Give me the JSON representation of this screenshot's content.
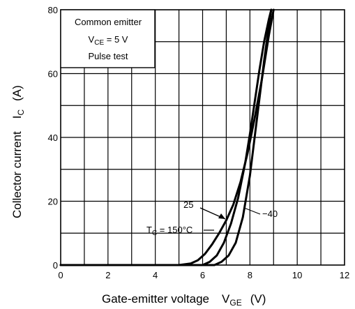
{
  "chart_data": {
    "type": "line",
    "xlabel": {
      "main": "Gate-emitter voltage",
      "symbol": "V",
      "sub": "GE",
      "unit": "(V)"
    },
    "ylabel": {
      "main": "Collector current",
      "symbol": "I",
      "sub": "C",
      "unit": "(A)"
    },
    "xlim": [
      0,
      12
    ],
    "ylim": [
      0,
      80
    ],
    "xticks": [
      0,
      2,
      4,
      6,
      8,
      10,
      12
    ],
    "yticks": [
      0,
      20,
      40,
      60,
      80
    ],
    "grid": true,
    "conditions": {
      "line1": "Common emitter",
      "line2_symbol": "V",
      "line2_sub": "CE",
      "line2_rest": " = 5 V",
      "line3": "Pulse test"
    },
    "series": [
      {
        "name": "T_C = 150°C",
        "x": [
          5.0,
          5.5,
          5.8,
          6.1,
          6.4,
          6.7,
          7.0,
          7.3,
          7.6,
          7.9,
          8.2,
          8.5,
          8.8,
          9.0
        ],
        "y": [
          0,
          0.5,
          1.5,
          3.5,
          6.5,
          10,
          14,
          19,
          26,
          35,
          46,
          58,
          72,
          80
        ]
      },
      {
        "name": "25",
        "x": [
          6.0,
          6.3,
          6.6,
          6.9,
          7.2,
          7.5,
          7.8,
          8.0,
          8.2,
          8.4,
          8.6,
          8.8,
          8.9
        ],
        "y": [
          0,
          1,
          3,
          7,
          13,
          21,
          32,
          41,
          51,
          61,
          70,
          77,
          80
        ]
      },
      {
        "name": "−40",
        "x": [
          6.5,
          6.8,
          7.1,
          7.4,
          7.7,
          8.0,
          8.2,
          8.4,
          8.6,
          8.8,
          8.9
        ],
        "y": [
          0,
          1,
          3,
          7,
          15,
          28,
          40,
          52,
          64,
          75,
          80
        ]
      }
    ],
    "labels": {
      "tc_main": "T",
      "tc_sub": "C",
      "tc_rest": " = 150°C",
      "l25": "25",
      "lm40": "−40"
    }
  }
}
